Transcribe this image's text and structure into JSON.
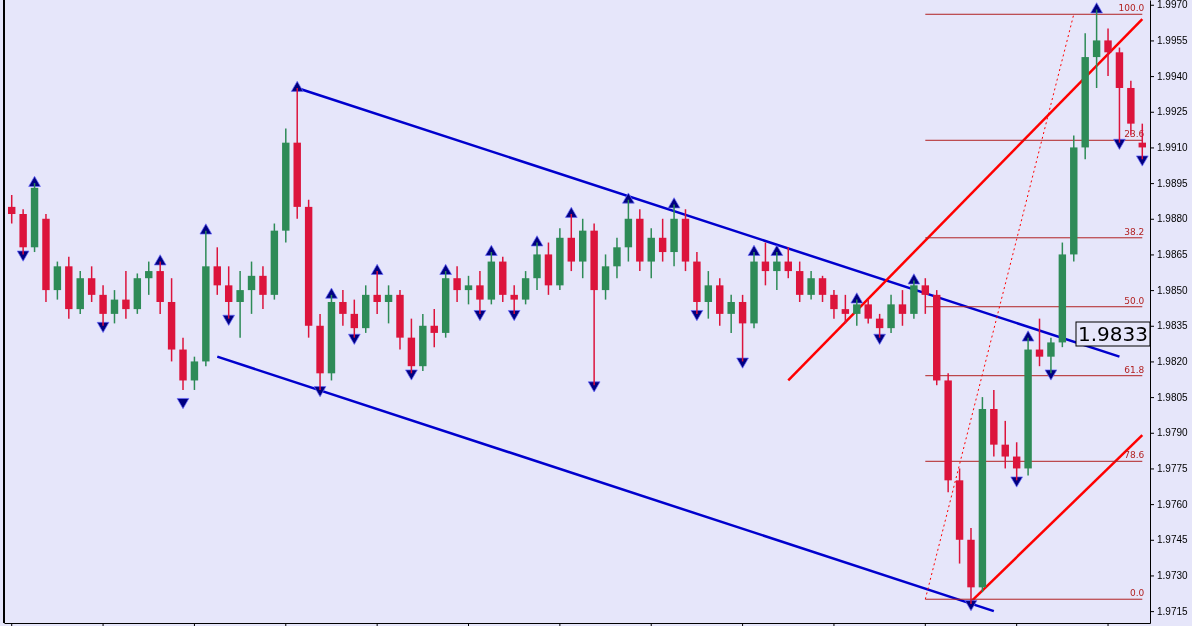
{
  "chart_data": {
    "type": "candlestick",
    "categories": [
      null,
      null,
      null,
      null,
      null,
      null,
      null,
      null,
      null,
      null,
      null,
      null,
      null,
      null,
      null,
      null,
      null,
      null,
      null,
      null,
      null,
      null,
      null,
      null,
      null,
      null,
      null,
      null,
      null,
      null,
      null,
      null,
      null,
      null,
      null,
      null,
      null,
      null,
      null,
      null,
      null,
      null,
      null,
      null,
      null,
      null,
      null,
      null,
      null,
      null,
      null,
      null,
      null,
      null,
      null,
      null,
      null,
      null,
      null,
      null,
      null,
      null,
      null,
      null,
      null,
      null,
      null,
      null,
      null,
      null,
      null,
      null,
      null,
      null,
      null,
      null,
      null,
      null,
      null,
      null,
      null,
      null,
      null,
      null,
      null,
      null,
      null,
      null,
      null,
      null,
      null,
      null,
      null,
      null,
      null,
      null,
      null,
      null,
      null,
      null
    ],
    "ohlc": [
      [
        1.9885,
        1.989,
        1.9878,
        1.9882
      ],
      [
        1.9882,
        1.9884,
        1.9865,
        1.9868
      ],
      [
        1.9868,
        1.9895,
        1.9866,
        1.9893
      ],
      [
        1.988,
        1.9882,
        1.9845,
        1.985
      ],
      [
        1.985,
        1.9862,
        1.9846,
        1.986
      ],
      [
        1.986,
        1.9864,
        1.9838,
        1.9842
      ],
      [
        1.9842,
        1.9858,
        1.984,
        1.9855
      ],
      [
        1.9855,
        1.986,
        1.9845,
        1.9848
      ],
      [
        1.9848,
        1.9852,
        1.9835,
        1.984
      ],
      [
        1.984,
        1.985,
        1.9836,
        1.9846
      ],
      [
        1.9846,
        1.9858,
        1.9838,
        1.9842
      ],
      [
        1.9842,
        1.9857,
        1.984,
        1.9855
      ],
      [
        1.9855,
        1.9862,
        1.9848,
        1.9858
      ],
      [
        1.9858,
        1.9862,
        1.984,
        1.9845
      ],
      [
        1.9845,
        1.9855,
        1.982,
        1.9825
      ],
      [
        1.9825,
        1.983,
        1.9808,
        1.9812
      ],
      [
        1.9812,
        1.9822,
        1.9808,
        1.982
      ],
      [
        1.982,
        1.9875,
        1.9818,
        1.986
      ],
      [
        1.986,
        1.9868,
        1.9848,
        1.9852
      ],
      [
        1.9852,
        1.986,
        1.9838,
        1.9845
      ],
      [
        1.9845,
        1.9858,
        1.983,
        1.985
      ],
      [
        1.985,
        1.9862,
        1.984,
        1.9856
      ],
      [
        1.9856,
        1.986,
        1.9842,
        1.9848
      ],
      [
        1.9848,
        1.9878,
        1.9846,
        1.9875
      ],
      [
        1.9875,
        1.9918,
        1.987,
        1.9912
      ],
      [
        1.9912,
        1.9935,
        1.988,
        1.9885
      ],
      [
        1.9885,
        1.9888,
        1.983,
        1.9835
      ],
      [
        1.9835,
        1.984,
        1.9808,
        1.9815
      ],
      [
        1.9815,
        1.9848,
        1.9812,
        1.9845
      ],
      [
        1.9845,
        1.985,
        1.9835,
        1.984
      ],
      [
        1.984,
        1.9846,
        1.983,
        1.9834
      ],
      [
        1.9834,
        1.9852,
        1.9832,
        1.9848
      ],
      [
        1.9848,
        1.9858,
        1.984,
        1.9845
      ],
      [
        1.9845,
        1.9852,
        1.9836,
        1.9848
      ],
      [
        1.9848,
        1.985,
        1.9825,
        1.983
      ],
      [
        1.983,
        1.9838,
        1.9815,
        1.9818
      ],
      [
        1.9818,
        1.984,
        1.9816,
        1.9835
      ],
      [
        1.9835,
        1.9842,
        1.9826,
        1.9832
      ],
      [
        1.9832,
        1.9858,
        1.983,
        1.9855
      ],
      [
        1.9855,
        1.986,
        1.9845,
        1.985
      ],
      [
        1.985,
        1.9856,
        1.9844,
        1.9852
      ],
      [
        1.9852,
        1.9858,
        1.984,
        1.9846
      ],
      [
        1.9846,
        1.9866,
        1.9844,
        1.9862
      ],
      [
        1.9862,
        1.9864,
        1.9845,
        1.9848
      ],
      [
        1.9848,
        1.9852,
        1.984,
        1.9846
      ],
      [
        1.9846,
        1.9858,
        1.9844,
        1.9855
      ],
      [
        1.9855,
        1.987,
        1.985,
        1.9865
      ],
      [
        1.9865,
        1.987,
        1.9848,
        1.9852
      ],
      [
        1.9852,
        1.9876,
        1.985,
        1.9872
      ],
      [
        1.9872,
        1.9882,
        1.9858,
        1.9862
      ],
      [
        1.9862,
        1.988,
        1.9855,
        1.9875
      ],
      [
        1.9875,
        1.9878,
        1.981,
        1.985
      ],
      [
        1.985,
        1.9865,
        1.9846,
        1.986
      ],
      [
        1.986,
        1.9872,
        1.9855,
        1.9868
      ],
      [
        1.9868,
        1.9888,
        1.9862,
        1.988
      ],
      [
        1.988,
        1.9884,
        1.9858,
        1.9862
      ],
      [
        1.9862,
        1.9876,
        1.9855,
        1.9872
      ],
      [
        1.9872,
        1.988,
        1.9862,
        1.9866
      ],
      [
        1.9866,
        1.9886,
        1.986,
        1.988
      ],
      [
        1.988,
        1.9884,
        1.9858,
        1.9862
      ],
      [
        1.9862,
        1.9866,
        1.984,
        1.9845
      ],
      [
        1.9845,
        1.9858,
        1.9838,
        1.9852
      ],
      [
        1.9852,
        1.9855,
        1.9835,
        1.984
      ],
      [
        1.984,
        1.9848,
        1.9832,
        1.9845
      ],
      [
        1.9845,
        1.9848,
        1.982,
        1.9836
      ],
      [
        1.9836,
        1.9866,
        1.9834,
        1.9862
      ],
      [
        1.9862,
        1.987,
        1.9852,
        1.9858
      ],
      [
        1.9858,
        1.9866,
        1.985,
        1.9862
      ],
      [
        1.9862,
        1.9868,
        1.9855,
        1.9858
      ],
      [
        1.9858,
        1.9862,
        1.9845,
        1.9848
      ],
      [
        1.9848,
        1.9858,
        1.9846,
        1.9855
      ],
      [
        1.9855,
        1.9856,
        1.9845,
        1.9848
      ],
      [
        1.9848,
        1.985,
        1.9838,
        1.9842
      ],
      [
        1.9842,
        1.9848,
        1.9836,
        1.984
      ],
      [
        1.984,
        1.9846,
        1.9835,
        1.9844
      ],
      [
        1.9844,
        1.9846,
        1.9836,
        1.9838
      ],
      [
        1.9838,
        1.984,
        1.983,
        1.9834
      ],
      [
        1.9834,
        1.9848,
        1.9832,
        1.9844
      ],
      [
        1.9844,
        1.985,
        1.9835,
        1.984
      ],
      [
        1.984,
        1.9854,
        1.9838,
        1.9852
      ],
      [
        1.9852,
        1.9855,
        1.984,
        1.9848
      ],
      [
        1.9848,
        1.985,
        1.981,
        1.9812
      ],
      [
        1.9812,
        1.9815,
        1.9765,
        1.977
      ],
      [
        1.977,
        1.9775,
        1.9735,
        1.9745
      ],
      [
        1.9745,
        1.975,
        1.9718,
        1.9725
      ],
      [
        1.9725,
        1.9805,
        1.9723,
        1.98
      ],
      [
        1.98,
        1.9808,
        1.978,
        1.9785
      ],
      [
        1.9785,
        1.9795,
        1.9775,
        1.978
      ],
      [
        1.978,
        1.9786,
        1.977,
        1.9775
      ],
      [
        1.9775,
        1.983,
        1.9772,
        1.9825
      ],
      [
        1.9825,
        1.9838,
        1.9818,
        1.9822
      ],
      [
        1.9822,
        1.983,
        1.9815,
        1.9828
      ],
      [
        1.9828,
        1.987,
        1.9826,
        1.9865
      ],
      [
        1.9865,
        1.9915,
        1.9862,
        1.991
      ],
      [
        1.991,
        1.9958,
        1.9905,
        1.9948
      ],
      [
        1.9948,
        1.9968,
        1.9935,
        1.9955
      ],
      [
        1.9955,
        1.996,
        1.994,
        1.995
      ],
      [
        1.995,
        1.9952,
        1.9912,
        1.9935
      ],
      [
        1.9935,
        1.9938,
        1.9915,
        1.992
      ],
      [
        1.9912,
        1.992,
        1.9905,
        1.991
      ]
    ],
    "series": [
      {
        "type": "scatter",
        "marker": "triangle",
        "color": "#000080",
        "values": [
          null,
          null,
          1.9895,
          null,
          null,
          null,
          null,
          null,
          null,
          null,
          null,
          null,
          null,
          1.9862,
          null,
          null,
          null,
          1.9875,
          null,
          null,
          null,
          null,
          null,
          null,
          null,
          1.9935,
          null,
          null,
          1.9848,
          null,
          null,
          null,
          1.9858,
          null,
          null,
          null,
          null,
          null,
          1.9858,
          null,
          null,
          null,
          1.9866,
          null,
          null,
          null,
          1.987,
          null,
          null,
          1.9882,
          null,
          null,
          null,
          null,
          1.9888,
          null,
          null,
          null,
          1.9886,
          null,
          null,
          null,
          null,
          null,
          null,
          1.9866,
          null,
          1.9866,
          null,
          null,
          null,
          null,
          null,
          null,
          1.9846,
          null,
          null,
          null,
          null,
          1.9854,
          null,
          null,
          null,
          null,
          null,
          null,
          null,
          null,
          null,
          1.983,
          null,
          null,
          null,
          null,
          null,
          1.9968,
          null,
          null,
          null,
          null
        ]
      },
      {
        "type": "scatter",
        "marker": "triangle",
        "color": "#000080",
        "values": [
          null,
          1.9865,
          null,
          null,
          null,
          null,
          null,
          null,
          1.9835,
          null,
          null,
          null,
          null,
          null,
          null,
          1.9803,
          null,
          null,
          null,
          1.9838,
          null,
          null,
          null,
          null,
          null,
          null,
          null,
          1.9808,
          null,
          null,
          1.983,
          null,
          null,
          null,
          null,
          1.9815,
          null,
          null,
          null,
          null,
          null,
          1.984,
          null,
          null,
          1.984,
          null,
          null,
          null,
          null,
          null,
          null,
          1.981,
          null,
          null,
          null,
          null,
          null,
          null,
          null,
          null,
          1.984,
          null,
          null,
          null,
          1.982,
          null,
          null,
          null,
          null,
          null,
          null,
          null,
          null,
          null,
          null,
          null,
          1.983,
          null,
          null,
          null,
          null,
          null,
          null,
          null,
          1.9718,
          null,
          null,
          null,
          1.977,
          null,
          null,
          1.9815,
          null,
          null,
          null,
          null,
          null,
          1.9912,
          null,
          1.9905
        ]
      },
      {
        "type": "line",
        "color": "#0000cd",
        "values": [
          null,
          null,
          null,
          null,
          null,
          null,
          null,
          null,
          null,
          null,
          null,
          null,
          null,
          null,
          null,
          null,
          null,
          null,
          null,
          null,
          null,
          null,
          null,
          null,
          null,
          1.9935,
          null,
          null,
          null,
          null,
          null,
          null,
          null,
          null,
          null,
          null,
          null,
          null,
          null,
          null,
          null,
          null,
          null,
          null,
          null,
          null,
          null,
          null,
          null,
          null,
          null,
          null,
          null,
          null,
          null,
          null,
          null,
          null,
          null,
          null,
          null,
          null,
          null,
          null,
          null,
          null,
          null,
          null,
          null,
          null,
          null,
          null,
          null,
          null,
          null,
          null,
          null,
          null,
          null,
          null,
          null,
          null,
          null,
          null,
          null,
          null,
          null,
          null,
          null,
          null,
          null,
          null,
          null,
          null,
          null,
          null,
          null,
          1.9822,
          null,
          null
        ]
      },
      {
        "type": "line",
        "color": "#0000cd",
        "values": [
          null,
          null,
          null,
          null,
          null,
          null,
          null,
          null,
          null,
          null,
          null,
          null,
          null,
          null,
          null,
          null,
          null,
          null,
          1.9822,
          null,
          null,
          null,
          null,
          null,
          null,
          null,
          null,
          null,
          null,
          null,
          null,
          null,
          null,
          null,
          null,
          null,
          null,
          null,
          null,
          null,
          null,
          null,
          null,
          null,
          null,
          null,
          null,
          null,
          null,
          null,
          null,
          null,
          null,
          null,
          null,
          null,
          null,
          null,
          null,
          null,
          null,
          null,
          null,
          null,
          null,
          null,
          null,
          null,
          null,
          null,
          null,
          null,
          null,
          null,
          null,
          null,
          null,
          null,
          null,
          null,
          null,
          null,
          null,
          null,
          null,
          null,
          1.9715,
          null,
          null,
          null,
          null,
          null,
          null,
          null,
          null,
          null,
          null,
          null,
          null,
          null
        ]
      },
      {
        "type": "line",
        "color": "#ff0000",
        "values": [
          null,
          null,
          null,
          null,
          null,
          null,
          null,
          null,
          null,
          null,
          null,
          null,
          null,
          null,
          null,
          null,
          null,
          null,
          null,
          null,
          null,
          null,
          null,
          null,
          null,
          null,
          null,
          null,
          null,
          null,
          null,
          null,
          null,
          null,
          null,
          null,
          null,
          null,
          null,
          null,
          null,
          null,
          null,
          null,
          null,
          null,
          null,
          null,
          null,
          null,
          null,
          null,
          null,
          null,
          null,
          null,
          null,
          null,
          null,
          null,
          null,
          null,
          null,
          null,
          null,
          null,
          null,
          null,
          1.9812,
          null,
          null,
          null,
          null,
          null,
          null,
          null,
          null,
          null,
          null,
          null,
          null,
          null,
          null,
          null,
          null,
          null,
          null,
          null,
          null,
          null,
          null,
          null,
          null,
          null,
          null,
          null,
          null,
          null,
          null,
          1.9964
        ]
      },
      {
        "type": "line",
        "color": "#ff0000",
        "values": [
          null,
          null,
          null,
          null,
          null,
          null,
          null,
          null,
          null,
          null,
          null,
          null,
          null,
          null,
          null,
          null,
          null,
          null,
          null,
          null,
          null,
          null,
          null,
          null,
          null,
          null,
          null,
          null,
          null,
          null,
          null,
          null,
          null,
          null,
          null,
          null,
          null,
          null,
          null,
          null,
          null,
          null,
          null,
          null,
          null,
          null,
          null,
          null,
          null,
          null,
          null,
          null,
          null,
          null,
          null,
          null,
          null,
          null,
          null,
          null,
          null,
          null,
          null,
          null,
          null,
          null,
          null,
          null,
          null,
          null,
          null,
          null,
          null,
          null,
          null,
          null,
          null,
          null,
          null,
          null,
          null,
          null,
          null,
          null,
          1.9719,
          null,
          null,
          null,
          null,
          null,
          null,
          null,
          null,
          null,
          null,
          null,
          null,
          null,
          null,
          1.9789
        ]
      },
      {
        "type": "line",
        "name": "100.0",
        "color": "#b22222",
        "values": [
          null,
          null,
          null,
          null,
          null,
          null,
          null,
          null,
          null,
          null,
          null,
          null,
          null,
          null,
          null,
          null,
          null,
          null,
          null,
          null,
          null,
          null,
          null,
          null,
          null,
          null,
          null,
          null,
          null,
          null,
          null,
          null,
          null,
          null,
          null,
          null,
          null,
          null,
          null,
          null,
          null,
          null,
          null,
          null,
          null,
          null,
          null,
          null,
          null,
          null,
          null,
          null,
          null,
          null,
          null,
          null,
          null,
          null,
          null,
          null,
          null,
          null,
          null,
          null,
          null,
          null,
          null,
          null,
          null,
          null,
          null,
          null,
          null,
          null,
          null,
          null,
          null,
          null,
          null,
          null,
          1.9966,
          null,
          null,
          null,
          null,
          null,
          null,
          null,
          null,
          null,
          null,
          null,
          null,
          null,
          null,
          null,
          null,
          null,
          null,
          1.9966
        ]
      },
      {
        "type": "line",
        "name": "23.6",
        "color": "#b22222",
        "values": [
          null,
          null,
          null,
          null,
          null,
          null,
          null,
          null,
          null,
          null,
          null,
          null,
          null,
          null,
          null,
          null,
          null,
          null,
          null,
          null,
          null,
          null,
          null,
          null,
          null,
          null,
          null,
          null,
          null,
          null,
          null,
          null,
          null,
          null,
          null,
          null,
          null,
          null,
          null,
          null,
          null,
          null,
          null,
          null,
          null,
          null,
          null,
          null,
          null,
          null,
          null,
          null,
          null,
          null,
          null,
          null,
          null,
          null,
          null,
          null,
          null,
          null,
          null,
          null,
          null,
          null,
          null,
          null,
          null,
          null,
          null,
          null,
          null,
          null,
          null,
          null,
          null,
          null,
          null,
          null,
          1.9913,
          null,
          null,
          null,
          null,
          null,
          null,
          null,
          null,
          null,
          null,
          null,
          null,
          null,
          null,
          null,
          null,
          null,
          null,
          1.9913
        ]
      },
      {
        "type": "line",
        "name": "38.2",
        "color": "#b22222",
        "values": [
          null,
          null,
          null,
          null,
          null,
          null,
          null,
          null,
          null,
          null,
          null,
          null,
          null,
          null,
          null,
          null,
          null,
          null,
          null,
          null,
          null,
          null,
          null,
          null,
          null,
          null,
          null,
          null,
          null,
          null,
          null,
          null,
          null,
          null,
          null,
          null,
          null,
          null,
          null,
          null,
          null,
          null,
          null,
          null,
          null,
          null,
          null,
          null,
          null,
          null,
          null,
          null,
          null,
          null,
          null,
          null,
          null,
          null,
          null,
          null,
          null,
          null,
          null,
          null,
          null,
          null,
          null,
          null,
          null,
          null,
          null,
          null,
          null,
          null,
          null,
          null,
          null,
          null,
          null,
          null,
          1.9872,
          null,
          null,
          null,
          null,
          null,
          null,
          null,
          null,
          null,
          null,
          null,
          null,
          null,
          null,
          null,
          null,
          null,
          null,
          1.9872
        ]
      },
      {
        "type": "line",
        "name": "50.0",
        "color": "#b22222",
        "values": [
          null,
          null,
          null,
          null,
          null,
          null,
          null,
          null,
          null,
          null,
          null,
          null,
          null,
          null,
          null,
          null,
          null,
          null,
          null,
          null,
          null,
          null,
          null,
          null,
          null,
          null,
          null,
          null,
          null,
          null,
          null,
          null,
          null,
          null,
          null,
          null,
          null,
          null,
          null,
          null,
          null,
          null,
          null,
          null,
          null,
          null,
          null,
          null,
          null,
          null,
          null,
          null,
          null,
          null,
          null,
          null,
          null,
          null,
          null,
          null,
          null,
          null,
          null,
          null,
          null,
          null,
          null,
          null,
          null,
          null,
          null,
          null,
          null,
          null,
          null,
          null,
          null,
          null,
          null,
          null,
          1.9843,
          null,
          null,
          null,
          null,
          null,
          null,
          null,
          null,
          null,
          null,
          null,
          null,
          null,
          null,
          null,
          null,
          null,
          null,
          1.9843
        ]
      },
      {
        "type": "line",
        "name": "61.8",
        "color": "#b22222",
        "values": [
          null,
          null,
          null,
          null,
          null,
          null,
          null,
          null,
          null,
          null,
          null,
          null,
          null,
          null,
          null,
          null,
          null,
          null,
          null,
          null,
          null,
          null,
          null,
          null,
          null,
          null,
          null,
          null,
          null,
          null,
          null,
          null,
          null,
          null,
          null,
          null,
          null,
          null,
          null,
          null,
          null,
          null,
          null,
          null,
          null,
          null,
          null,
          null,
          null,
          null,
          null,
          null,
          null,
          null,
          null,
          null,
          null,
          null,
          null,
          null,
          null,
          null,
          null,
          null,
          null,
          null,
          null,
          null,
          null,
          null,
          null,
          null,
          null,
          null,
          null,
          null,
          null,
          null,
          null,
          null,
          1.9814,
          null,
          null,
          null,
          null,
          null,
          null,
          null,
          null,
          null,
          null,
          null,
          null,
          null,
          null,
          null,
          null,
          null,
          null,
          1.9814
        ]
      },
      {
        "type": "line",
        "name": "78.6",
        "color": "#b22222",
        "values": [
          null,
          null,
          null,
          null,
          null,
          null,
          null,
          null,
          null,
          null,
          null,
          null,
          null,
          null,
          null,
          null,
          null,
          null,
          null,
          null,
          null,
          null,
          null,
          null,
          null,
          null,
          null,
          null,
          null,
          null,
          null,
          null,
          null,
          null,
          null,
          null,
          null,
          null,
          null,
          null,
          null,
          null,
          null,
          null,
          null,
          null,
          null,
          null,
          null,
          null,
          null,
          null,
          null,
          null,
          null,
          null,
          null,
          null,
          null,
          null,
          null,
          null,
          null,
          null,
          null,
          null,
          null,
          null,
          null,
          null,
          null,
          null,
          null,
          null,
          null,
          null,
          null,
          null,
          null,
          null,
          1.9778,
          null,
          null,
          null,
          null,
          null,
          null,
          null,
          null,
          null,
          null,
          null,
          null,
          null,
          null,
          null,
          null,
          null,
          null,
          1.9778
        ]
      },
      {
        "type": "line",
        "name": "0.0",
        "color": "#b22222",
        "values": [
          null,
          null,
          null,
          null,
          null,
          null,
          null,
          null,
          null,
          null,
          null,
          null,
          null,
          null,
          null,
          null,
          null,
          null,
          null,
          null,
          null,
          null,
          null,
          null,
          null,
          null,
          null,
          null,
          null,
          null,
          null,
          null,
          null,
          null,
          null,
          null,
          null,
          null,
          null,
          null,
          null,
          null,
          null,
          null,
          null,
          null,
          null,
          null,
          null,
          null,
          null,
          null,
          null,
          null,
          null,
          null,
          null,
          null,
          null,
          null,
          null,
          null,
          null,
          null,
          null,
          null,
          null,
          null,
          null,
          null,
          null,
          null,
          null,
          null,
          null,
          null,
          null,
          null,
          null,
          null,
          1.972,
          null,
          null,
          null,
          null,
          null,
          null,
          null,
          null,
          null,
          null,
          null,
          null,
          null,
          null,
          null,
          null,
          null,
          null,
          1.972
        ]
      },
      {
        "type": "line",
        "color": "#ff0000",
        "line_style": "dotted",
        "values": [
          null,
          null,
          null,
          null,
          null,
          null,
          null,
          null,
          null,
          null,
          null,
          null,
          null,
          null,
          null,
          null,
          null,
          null,
          null,
          null,
          null,
          null,
          null,
          null,
          null,
          null,
          null,
          null,
          null,
          null,
          null,
          null,
          null,
          null,
          null,
          null,
          null,
          null,
          null,
          null,
          null,
          null,
          null,
          null,
          null,
          null,
          null,
          null,
          null,
          null,
          null,
          null,
          null,
          null,
          null,
          null,
          null,
          null,
          null,
          null,
          null,
          null,
          null,
          null,
          null,
          null,
          null,
          null,
          null,
          null,
          null,
          null,
          null,
          null,
          null,
          null,
          null,
          null,
          null,
          null,
          1.972,
          null,
          null,
          null,
          null,
          null,
          null,
          null,
          null,
          null,
          null,
          null,
          null,
          1.9966,
          null,
          null,
          null,
          null,
          null,
          null
        ]
      }
    ],
    "ylim": [
      1.971,
      1.9972
    ],
    "yticks": [
      {
        "value": 1.9715,
        "label": "1.9715"
      },
      {
        "value": 1.973,
        "label": "1.9730"
      },
      {
        "value": 1.9745,
        "label": "1.9745"
      },
      {
        "value": 1.976,
        "label": "1.9760"
      },
      {
        "value": 1.9775,
        "label": "1.9775"
      },
      {
        "value": 1.979,
        "label": "1.9790"
      },
      {
        "value": 1.9805,
        "label": "1.9805"
      },
      {
        "value": 1.982,
        "label": "1.9820"
      },
      {
        "value": 1.9835,
        "label": "1.9835"
      },
      {
        "value": 1.985,
        "label": "1.9850"
      },
      {
        "value": 1.9865,
        "label": "1.9865"
      },
      {
        "value": 1.988,
        "label": "1.9880"
      },
      {
        "value": 1.9895,
        "label": "1.9895"
      },
      {
        "value": 1.991,
        "label": "1.9910"
      },
      {
        "value": 1.9925,
        "label": "1.9925"
      },
      {
        "value": 1.994,
        "label": "1.9940"
      },
      {
        "value": 1.9955,
        "label": "1.9955"
      },
      {
        "value": 1.997,
        "label": "1.9970"
      }
    ],
    "tick_labels": "y",
    "annotations": [
      "1.9833"
    ]
  }
}
